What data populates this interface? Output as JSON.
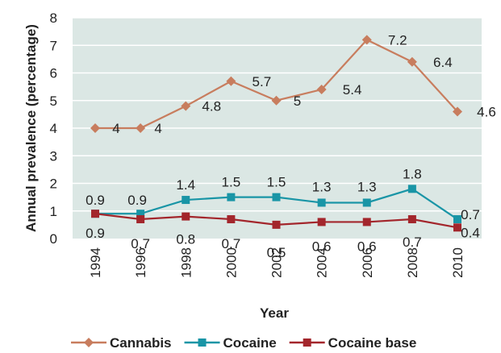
{
  "chart_data": {
    "type": "line",
    "x": [
      "1994",
      "1996",
      "1998",
      "2000",
      "2002",
      "2004",
      "2006",
      "2008",
      "2010"
    ],
    "xlabel": "Year",
    "ylabel": "Annual prevalence (percentage)",
    "ylim": [
      0,
      8
    ],
    "yticks": [
      0,
      1,
      2,
      3,
      4,
      5,
      6,
      7,
      8
    ],
    "grid": true,
    "legend": "bottom",
    "series": [
      {
        "name": "Cannabis",
        "color": "#c87d5e",
        "marker": "diamond",
        "values": [
          4,
          4,
          4.8,
          5.7,
          5,
          5.4,
          7.2,
          6.4,
          4.6
        ],
        "labels": [
          "4",
          "4",
          "4.8",
          "5.7",
          "5",
          "5.4",
          "7.2",
          "6.4",
          "4.6"
        ]
      },
      {
        "name": "Cocaine",
        "color": "#1995a6",
        "marker": "square",
        "values": [
          0.9,
          0.9,
          1.4,
          1.5,
          1.5,
          1.3,
          1.3,
          1.8,
          0.7
        ],
        "labels": [
          "0.9",
          "0.9",
          "1.4",
          "1.5",
          "1.5",
          "1.3",
          "1.3",
          "1.8",
          "0.7"
        ]
      },
      {
        "name": "Cocaine base",
        "color": "#a3262c",
        "marker": "square",
        "values": [
          0.9,
          0.7,
          0.8,
          0.7,
          0.5,
          0.6,
          0.6,
          0.7,
          0.4
        ],
        "labels": [
          "0.9",
          "0.7",
          "0.8",
          "0.7",
          "0.5",
          "0.6",
          "0.6",
          "0.7",
          "0.4"
        ]
      }
    ]
  }
}
